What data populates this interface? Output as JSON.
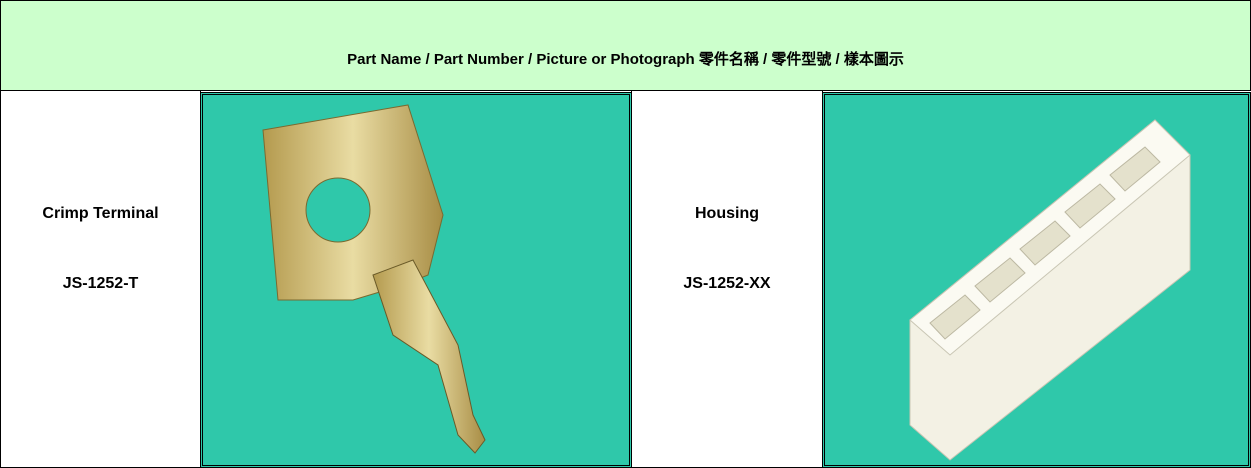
{
  "header": {
    "title": "Part Name / Part Number / Picture or Photograph 零件名稱 / 零件型號 / 樣本圖示"
  },
  "parts": [
    {
      "name": "Crimp Terminal",
      "number": "JS-1252-T"
    },
    {
      "name": "Housing",
      "number": "JS-1252-XX"
    }
  ]
}
